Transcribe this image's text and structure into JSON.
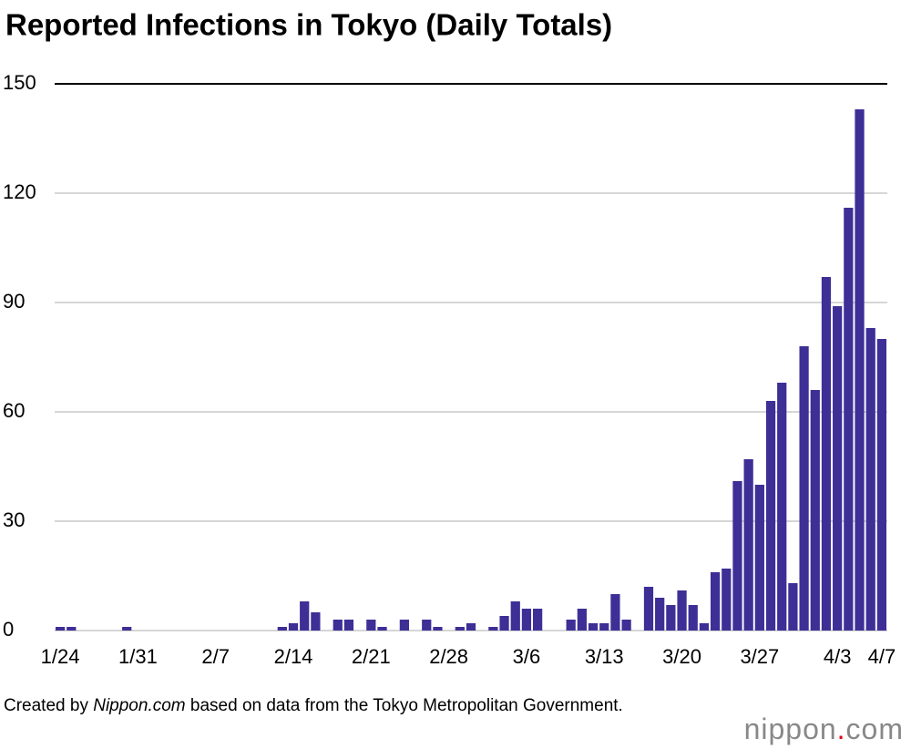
{
  "chart_data": {
    "type": "bar",
    "title": "Reported Infections in Tokyo (Daily Totals)",
    "categories": [
      "1/24",
      null,
      null,
      null,
      null,
      null,
      null,
      "1/31",
      null,
      null,
      null,
      null,
      null,
      null,
      "2/7",
      null,
      null,
      null,
      null,
      null,
      null,
      "2/14",
      null,
      null,
      null,
      null,
      null,
      null,
      "2/21",
      null,
      null,
      null,
      null,
      null,
      null,
      "2/28",
      null,
      null,
      null,
      null,
      null,
      null,
      "3/6",
      null,
      null,
      null,
      null,
      null,
      null,
      "3/13",
      null,
      null,
      null,
      null,
      null,
      null,
      "3/20",
      null,
      null,
      null,
      null,
      null,
      null,
      "3/27",
      null,
      null,
      null,
      null,
      null,
      null,
      "4/3",
      null,
      null,
      null,
      "4/7"
    ],
    "values": [
      1,
      1,
      0,
      0,
      0,
      0,
      1,
      0,
      0,
      0,
      0,
      0,
      0,
      0,
      0,
      0,
      0,
      0,
      0,
      0,
      1,
      2,
      8,
      5,
      0,
      3,
      3,
      0,
      3,
      1,
      0,
      3,
      0,
      3,
      1,
      0,
      1,
      2,
      0,
      1,
      4,
      8,
      6,
      6,
      0,
      0,
      3,
      6,
      2,
      2,
      10,
      3,
      0,
      12,
      9,
      7,
      11,
      7,
      2,
      16,
      17,
      41,
      47,
      40,
      63,
      68,
      13,
      78,
      66,
      97,
      89,
      116,
      143,
      83,
      80
    ],
    "color": "#3d2f96",
    "ylim": [
      0,
      150
    ],
    "yticks": [
      0,
      30,
      60,
      90,
      120,
      150
    ],
    "grid": true
  },
  "source": [
    "Created by ",
    "Nippon.com",
    " based on data from the Tokyo Metropolitan Government."
  ],
  "logo": [
    "nippon",
    ".",
    "com"
  ]
}
